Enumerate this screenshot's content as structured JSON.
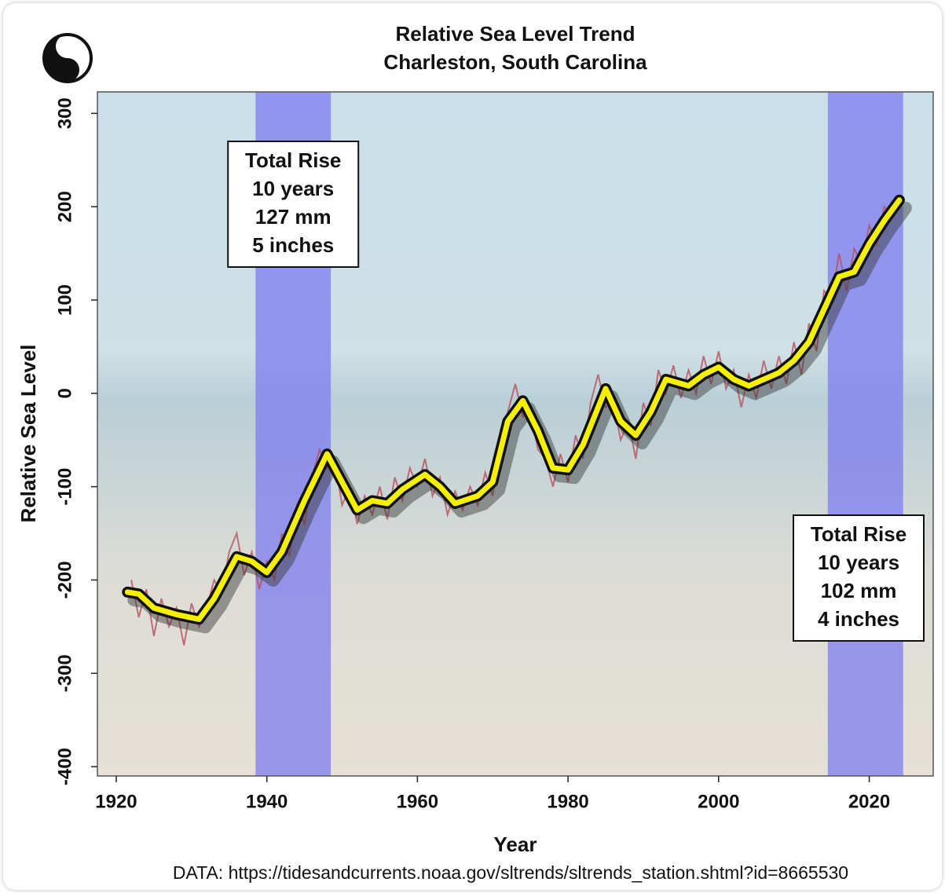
{
  "chart_data": {
    "type": "line",
    "title": "Relative Sea Level Trend",
    "subtitle": "Charleston, South Carolina",
    "xlabel": "Year",
    "ylabel": "Relative Sea Level",
    "source": "DATA: https://tidesandcurrents.noaa.gov/sltrends/sltrends_station.shtml?id=8665530",
    "xlim": [
      1917.5,
      2028.5
    ],
    "ylim": [
      -410,
      323
    ],
    "xticks": [
      1920,
      1940,
      1960,
      1980,
      2000,
      2020
    ],
    "yticks": [
      -400,
      -300,
      -200,
      -100,
      0,
      100,
      200,
      300
    ],
    "grid": false,
    "bands": [
      {
        "start": 1938.5,
        "end": 1948.5,
        "color": "#7d7cf0"
      },
      {
        "start": 2014.5,
        "end": 2024.5,
        "color": "#7d7cf0"
      }
    ],
    "annotations": [
      {
        "lines": [
          "Total Rise",
          "10 years",
          "127 mm",
          "5 inches"
        ]
      },
      {
        "lines": [
          "Total Rise",
          "10 years",
          "102 mm",
          "4 inches"
        ]
      }
    ],
    "series": [
      {
        "color": "#b5505e",
        "x": [
          1922,
          1923,
          1924,
          1925,
          1926,
          1927,
          1928,
          1929,
          1930,
          1931,
          1932,
          1933,
          1934,
          1935,
          1936,
          1937,
          1938,
          1939,
          1940,
          1941,
          1942,
          1943,
          1944,
          1945,
          1946,
          1947,
          1948,
          1949,
          1950,
          1951,
          1952,
          1953,
          1954,
          1955,
          1956,
          1957,
          1958,
          1959,
          1960,
          1961,
          1962,
          1963,
          1964,
          1965,
          1966,
          1967,
          1968,
          1969,
          1970,
          1971,
          1972,
          1973,
          1974,
          1975,
          1976,
          1977,
          1978,
          1979,
          1980,
          1981,
          1982,
          1983,
          1984,
          1985,
          1986,
          1987,
          1988,
          1989,
          1990,
          1991,
          1992,
          1993,
          1994,
          1995,
          1996,
          1997,
          1998,
          1999,
          2000,
          2001,
          2002,
          2003,
          2004,
          2005,
          2006,
          2007,
          2008,
          2009,
          2010,
          2011,
          2012,
          2013,
          2014,
          2015,
          2016,
          2017,
          2018,
          2019,
          2020,
          2021,
          2022,
          2023
        ],
        "values": [
          -200,
          -240,
          -210,
          -260,
          -220,
          -250,
          -230,
          -270,
          -225,
          -250,
          -230,
          -200,
          -215,
          -170,
          -150,
          -195,
          -170,
          -210,
          -180,
          -200,
          -150,
          -175,
          -120,
          -140,
          -90,
          -60,
          -80,
          -70,
          -120,
          -100,
          -140,
          -110,
          -130,
          -100,
          -135,
          -90,
          -115,
          -80,
          -100,
          -70,
          -110,
          -90,
          -130,
          -105,
          -125,
          -100,
          -120,
          -85,
          -110,
          -50,
          -20,
          10,
          -25,
          -20,
          -60,
          -70,
          -100,
          -65,
          -95,
          -45,
          -70,
          -10,
          20,
          -15,
          -10,
          -50,
          -30,
          -70,
          -10,
          -35,
          25,
          0,
          30,
          -5,
          25,
          0,
          40,
          10,
          45,
          5,
          25,
          -15,
          20,
          -5,
          35,
          5,
          40,
          10,
          55,
          20,
          75,
          45,
          110,
          100,
          150,
          110,
          155,
          140,
          180,
          160,
          200,
          190
        ]
      },
      {
        "color": "#f5f000",
        "x": [
          1921.5,
          1923,
          1925,
          1928,
          1931,
          1933,
          1936,
          1938,
          1940,
          1942,
          1945,
          1948,
          1950,
          1952,
          1954,
          1956,
          1958,
          1961,
          1963,
          1965,
          1968,
          1970,
          1972,
          1974,
          1976,
          1978,
          1980,
          1982,
          1985,
          1987,
          1989,
          1991,
          1993,
          1996,
          1998,
          2000,
          2002,
          2004,
          2006,
          2008,
          2010,
          2012,
          2014,
          2016,
          2018,
          2020,
          2022,
          2024
        ],
        "values": [
          -213,
          -215,
          -230,
          -237,
          -242,
          -220,
          -175,
          -180,
          -192,
          -170,
          -115,
          -65,
          -95,
          -125,
          -115,
          -118,
          -103,
          -87,
          -100,
          -118,
          -110,
          -95,
          -30,
          -8,
          -40,
          -80,
          -82,
          -55,
          5,
          -30,
          -45,
          -20,
          15,
          8,
          20,
          28,
          15,
          8,
          15,
          22,
          35,
          55,
          90,
          125,
          130,
          160,
          185,
          207
        ]
      }
    ]
  }
}
